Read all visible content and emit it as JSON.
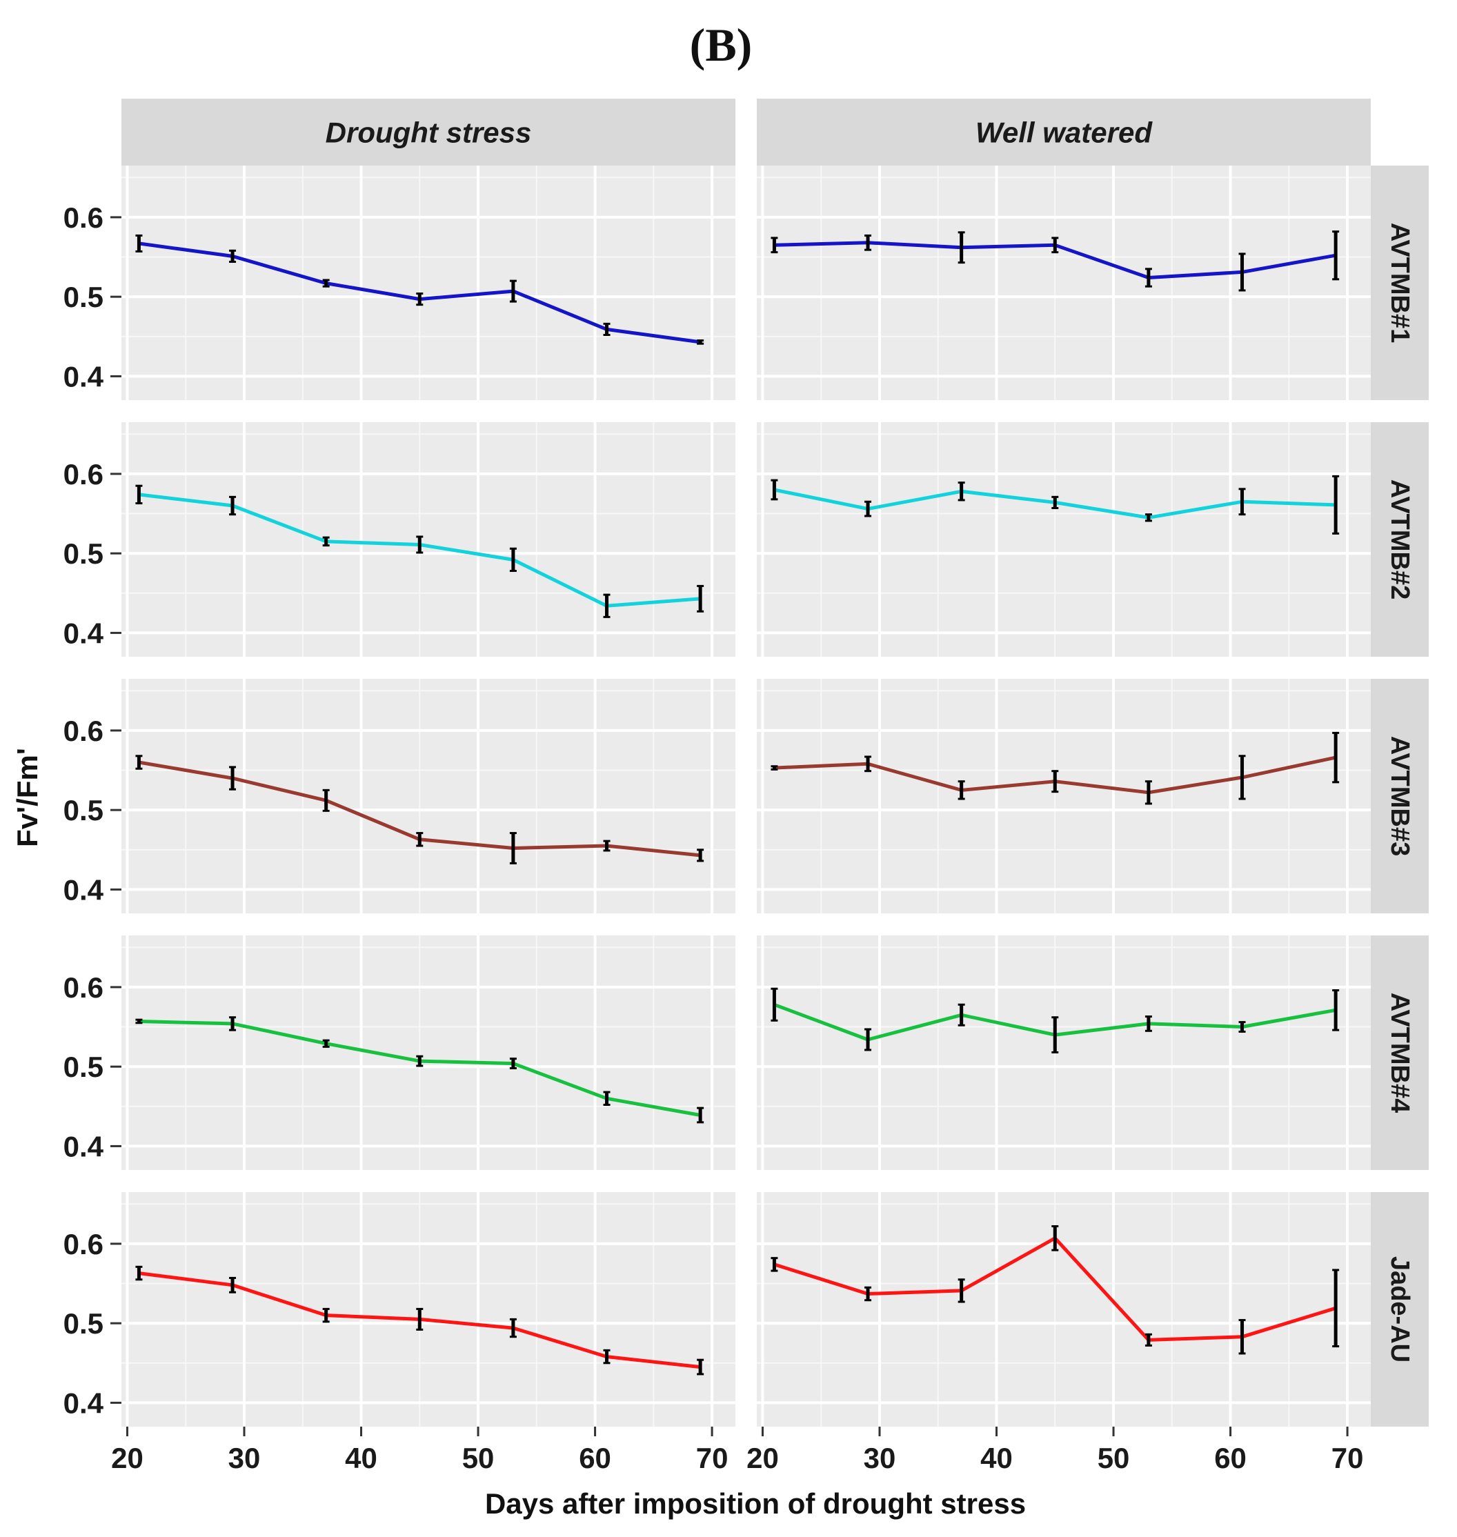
{
  "chart_data": {
    "type": "line",
    "title": "(B)",
    "xlabel": "Days after imposition of drought stress",
    "ylabel": "Fv'/Fm'",
    "x": [
      21,
      29,
      37,
      45,
      53,
      61,
      69
    ],
    "xlim": [
      19.5,
      72
    ],
    "xticks": [
      20,
      30,
      40,
      50,
      60,
      70
    ],
    "ylim": [
      0.37,
      0.665
    ],
    "yticks": [
      0.4,
      0.5,
      0.6
    ],
    "ytick_labels": [
      "0.4",
      "0.5",
      "0.6"
    ],
    "columns": [
      "Drought stress",
      "Well watered"
    ],
    "rows": [
      {
        "name": "AVTMB#1",
        "color": "#1414c8",
        "panels": [
          {
            "values": [
              0.567,
              0.551,
              0.517,
              0.497,
              0.507,
              0.459,
              0.443
            ],
            "errors": [
              0.01,
              0.007,
              0.004,
              0.007,
              0.013,
              0.007,
              0.002
            ]
          },
          {
            "values": [
              0.565,
              0.568,
              0.562,
              0.565,
              0.524,
              0.531,
              0.552
            ],
            "errors": [
              0.009,
              0.009,
              0.019,
              0.009,
              0.011,
              0.023,
              0.03
            ]
          }
        ]
      },
      {
        "name": "AVTMB#2",
        "color": "#12d2dc",
        "panels": [
          {
            "values": [
              0.574,
              0.56,
              0.515,
              0.511,
              0.492,
              0.434,
              0.443
            ],
            "errors": [
              0.011,
              0.011,
              0.005,
              0.01,
              0.014,
              0.014,
              0.016
            ]
          },
          {
            "values": [
              0.58,
              0.556,
              0.578,
              0.564,
              0.545,
              0.565,
              0.561
            ],
            "errors": [
              0.012,
              0.009,
              0.011,
              0.007,
              0.004,
              0.016,
              0.036
            ]
          }
        ]
      },
      {
        "name": "AVTMB#3",
        "color": "#993a30",
        "panels": [
          {
            "values": [
              0.56,
              0.54,
              0.512,
              0.463,
              0.452,
              0.455,
              0.443
            ],
            "errors": [
              0.008,
              0.014,
              0.013,
              0.008,
              0.019,
              0.006,
              0.007
            ]
          },
          {
            "values": [
              0.553,
              0.558,
              0.525,
              0.536,
              0.522,
              0.541,
              0.566
            ],
            "errors": [
              0.002,
              0.009,
              0.011,
              0.013,
              0.014,
              0.027,
              0.031
            ]
          }
        ]
      },
      {
        "name": "AVTMB#4",
        "color": "#18c040",
        "panels": [
          {
            "values": [
              0.557,
              0.554,
              0.529,
              0.507,
              0.504,
              0.46,
              0.439
            ],
            "errors": [
              0.002,
              0.008,
              0.004,
              0.006,
              0.006,
              0.008,
              0.009
            ]
          },
          {
            "values": [
              0.578,
              0.534,
              0.565,
              0.54,
              0.554,
              0.55,
              0.571
            ],
            "errors": [
              0.02,
              0.013,
              0.013,
              0.022,
              0.009,
              0.006,
              0.025
            ]
          }
        ]
      },
      {
        "name": "Jade-AU",
        "color": "#ff1414",
        "panels": [
          {
            "values": [
              0.563,
              0.548,
              0.51,
              0.505,
              0.494,
              0.458,
              0.445
            ],
            "errors": [
              0.008,
              0.009,
              0.008,
              0.013,
              0.011,
              0.008,
              0.009
            ]
          },
          {
            "values": [
              0.574,
              0.537,
              0.541,
              0.607,
              0.479,
              0.483,
              0.519
            ],
            "errors": [
              0.008,
              0.008,
              0.014,
              0.015,
              0.007,
              0.021,
              0.048
            ]
          }
        ]
      }
    ]
  }
}
